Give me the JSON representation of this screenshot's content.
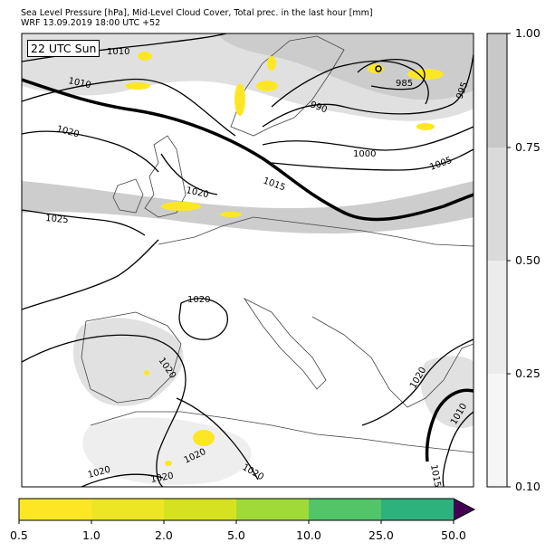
{
  "header": {
    "title_line1": "Sea Level Pressure [hPa], Mid-Level Cloud Cover, Total prec. in the last hour [mm]",
    "title_line2": "WRF 13.09.2019 18:00 UTC +52"
  },
  "map": {
    "time_badge": "22 UTC Sun",
    "isobar_labels": [
      "1010",
      "1010",
      "1020",
      "1025",
      "1020",
      "1015",
      "990",
      "985",
      "995",
      "1000",
      "1005",
      "1020",
      "1020",
      "1020",
      "1020",
      "1020",
      "1020",
      "1020",
      "1010",
      "1015"
    ],
    "colors": {
      "isobar": "#000000",
      "cloud_light": "#ececec",
      "cloud_mid": "#dadada",
      "cloud_dense": "#c8c8c8",
      "precip": "#fde725",
      "coastline": "#444444"
    }
  },
  "cloud_colorbar": {
    "ticks": [
      "0.10",
      "0.25",
      "0.50",
      "0.75",
      "1.00"
    ],
    "levels": [
      0.1,
      0.25,
      0.5,
      0.75,
      1.0
    ],
    "colors": [
      "#f6f6f6",
      "#ececec",
      "#dadada",
      "#c8c8c8"
    ]
  },
  "precip_colorbar": {
    "ticks": [
      "0.5",
      "1.0",
      "2.0",
      "5.0",
      "10.0",
      "25.0",
      "50.0"
    ],
    "levels": [
      0.5,
      1.0,
      2.0,
      5.0,
      10.0,
      25.0,
      50.0
    ],
    "colors": [
      "#fde725",
      "#ede625",
      "#d6e21f",
      "#a0da39",
      "#52c569",
      "#2db27d",
      "#3b528b",
      "#440154"
    ]
  }
}
